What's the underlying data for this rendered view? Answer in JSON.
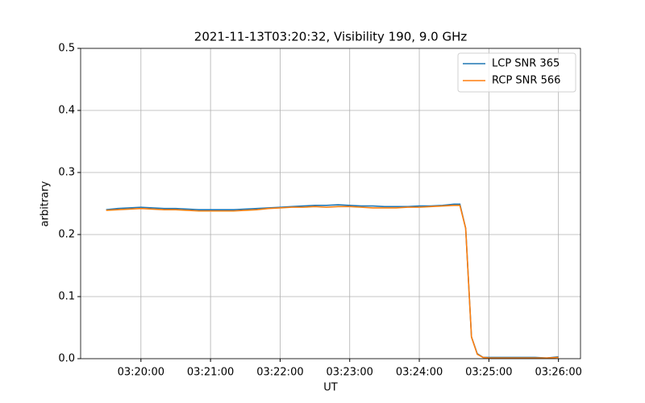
{
  "chart_data": {
    "type": "line",
    "title": "2021-11-13T03:20:32, Visibility 190, 9.0 GHz",
    "x_label": "UT",
    "y_label": "arbitrary",
    "x": [
      "03:19:30",
      "03:19:40",
      "03:19:50",
      "03:20:00",
      "03:20:10",
      "03:20:20",
      "03:20:30",
      "03:20:40",
      "03:20:50",
      "03:21:00",
      "03:21:10",
      "03:21:20",
      "03:21:30",
      "03:21:40",
      "03:21:50",
      "03:22:00",
      "03:22:10",
      "03:22:20",
      "03:22:30",
      "03:22:40",
      "03:22:50",
      "03:23:00",
      "03:23:10",
      "03:23:20",
      "03:23:30",
      "03:23:40",
      "03:23:50",
      "03:24:00",
      "03:24:10",
      "03:24:20",
      "03:24:30",
      "03:24:35",
      "03:24:40",
      "03:24:45",
      "03:24:50",
      "03:24:55",
      "03:25:00",
      "03:25:10",
      "03:25:20",
      "03:25:30",
      "03:25:40",
      "03:25:50",
      "03:26:00"
    ],
    "series": [
      {
        "name": "LCP SNR 365",
        "color": "#1f77b4",
        "values": [
          0.24,
          0.242,
          0.243,
          0.244,
          0.243,
          0.242,
          0.242,
          0.241,
          0.24,
          0.24,
          0.24,
          0.24,
          0.241,
          0.242,
          0.243,
          0.244,
          0.245,
          0.246,
          0.247,
          0.247,
          0.248,
          0.247,
          0.246,
          0.246,
          0.245,
          0.245,
          0.245,
          0.246,
          0.246,
          0.247,
          0.249,
          0.249,
          0.21,
          0.035,
          0.008,
          0.002,
          0.002,
          0.002,
          0.002,
          0.002,
          0.002,
          0.001,
          0.003
        ]
      },
      {
        "name": "RCP SNR 566",
        "color": "#ff7f0e",
        "values": [
          0.239,
          0.24,
          0.241,
          0.242,
          0.241,
          0.24,
          0.24,
          0.239,
          0.238,
          0.238,
          0.238,
          0.238,
          0.239,
          0.24,
          0.242,
          0.243,
          0.244,
          0.244,
          0.245,
          0.244,
          0.245,
          0.245,
          0.244,
          0.243,
          0.243,
          0.243,
          0.244,
          0.244,
          0.245,
          0.246,
          0.247,
          0.247,
          0.21,
          0.035,
          0.007,
          0.002,
          0.001,
          0.001,
          0.001,
          0.001,
          0.001,
          0.001,
          0.002
        ]
      }
    ],
    "xlim": [
      "03:19:08",
      "03:26:19"
    ],
    "xticks": [
      "03:20:00",
      "03:21:00",
      "03:22:00",
      "03:23:00",
      "03:24:00",
      "03:25:00",
      "03:26:00"
    ],
    "ylim": [
      0,
      0.5
    ],
    "yticks": [
      {
        "value": 0,
        "label": "0.0"
      },
      0.1,
      0.2,
      0.3,
      0.4,
      0.5
    ],
    "grid": true,
    "legend": "upper right"
  }
}
